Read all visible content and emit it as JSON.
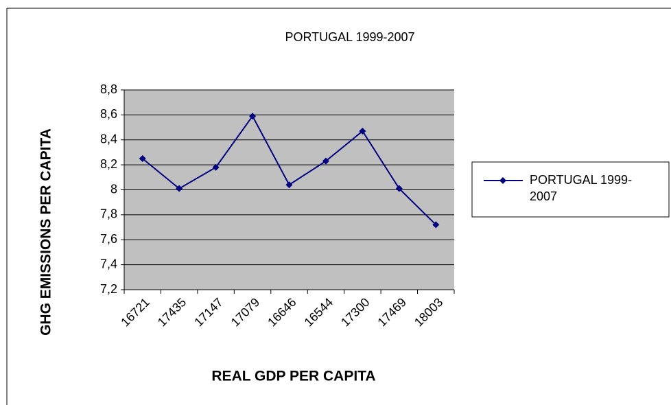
{
  "chart_data": {
    "type": "line",
    "title": "PORTUGAL 1999-2007",
    "x_label": "REAL GDP PER CAPITA",
    "y_label": "GHG EMISSIONS PER CAPITA",
    "categories": [
      "16721",
      "17435",
      "17147",
      "17079",
      "16646",
      "16544",
      "17300",
      "17469",
      "18003"
    ],
    "series": [
      {
        "name": "PORTUGAL 1999-2007",
        "color": "#000080",
        "values": [
          8.25,
          8.01,
          8.18,
          8.59,
          8.04,
          8.23,
          8.47,
          8.01,
          7.72
        ]
      }
    ],
    "ylim": [
      7.2,
      8.8
    ],
    "yticks": [
      {
        "value": 7.2,
        "label": "7,2"
      },
      {
        "value": 7.4,
        "label": "7,4"
      },
      {
        "value": 7.6,
        "label": "7,6"
      },
      {
        "value": 7.8,
        "label": "7,8"
      },
      8,
      {
        "value": 8.2,
        "label": "8,2"
      },
      {
        "value": 8.4,
        "label": "8,4"
      },
      {
        "value": 8.6,
        "label": "8,6"
      },
      {
        "value": 8.8,
        "label": "8,8"
      }
    ],
    "grid": true,
    "legend": "right"
  }
}
